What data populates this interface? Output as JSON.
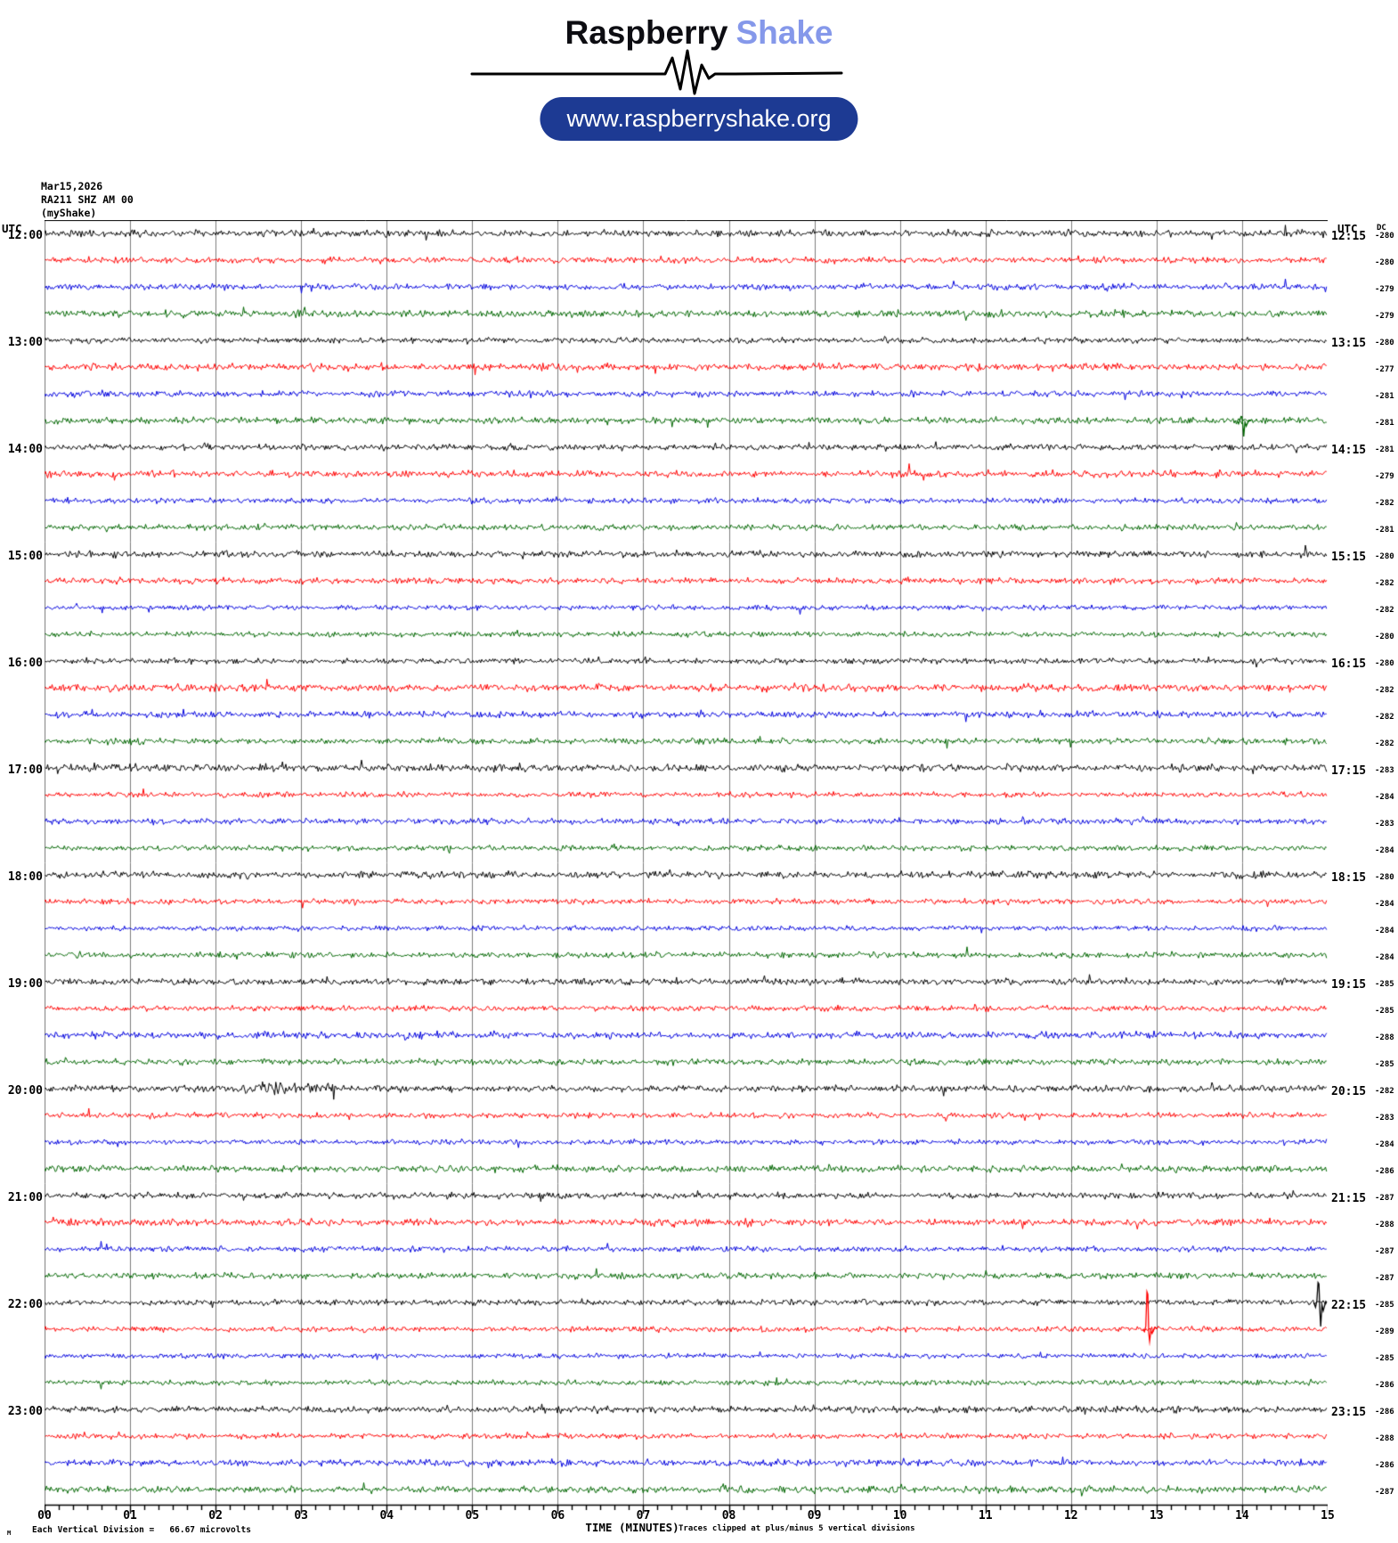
{
  "header": {
    "logo": {
      "primary": "Raspberry",
      "accent": "Shake",
      "primary_color": "#0d0d12",
      "accent_color": "#8598ea"
    },
    "url_pill": {
      "label": "www.raspberryshake.org",
      "bg": "#1d3a93",
      "fg": "#ffffff"
    }
  },
  "station": {
    "date": "Mar15,2026",
    "code": "RA211 SHZ AM 00",
    "network": "(myShake)"
  },
  "plot": {
    "left_axis_header": "UTC",
    "right_axis_header": "UTC",
    "dc_header": "DC",
    "x_axis_title": "TIME (MINUTES)",
    "clip_note": "Traces clipped at plus/minus 5 vertical divisions",
    "scale_note_prefix": "M",
    "scale_note": "Each Vertical Division =   66.67 microvolts",
    "x_tick_labels": [
      "00",
      "01",
      "02",
      "03",
      "04",
      "05",
      "06",
      "07",
      "08",
      "09",
      "10",
      "11",
      "12",
      "13",
      "14",
      "15"
    ],
    "grid_color": "#7d7d7d",
    "axis_color": "#000000",
    "trace_colors": [
      "#000000",
      "#ff0000",
      "#0000dd",
      "#006600"
    ]
  },
  "chart_data": {
    "type": "line",
    "subtype": "helicorder-seismogram",
    "title": "RA211 SHZ AM 00 (myShake) Mar15,2026",
    "xlabel": "TIME (MINUTES)",
    "x_range_minutes": [
      0,
      15
    ],
    "minutes_per_row": 15,
    "minor_ticks_per_minute": 6,
    "row_color_cycle": [
      "black",
      "red",
      "blue",
      "green"
    ],
    "noise_amplitude_divisions": 0.1,
    "rows": [
      {
        "start": "12:00",
        "left_label": "12:00",
        "right_label": "12:15",
        "color": "#000000",
        "dc": -280
      },
      {
        "start": "12:15",
        "color": "#ff0000",
        "dc": -280
      },
      {
        "start": "12:30",
        "color": "#0000dd",
        "dc": -279
      },
      {
        "start": "12:45",
        "color": "#006600",
        "dc": -279
      },
      {
        "start": "13:00",
        "left_label": "13:00",
        "right_label": "13:15",
        "color": "#000000",
        "dc": -280
      },
      {
        "start": "13:15",
        "color": "#ff0000",
        "dc": -277
      },
      {
        "start": "13:30",
        "color": "#0000dd",
        "dc": -281
      },
      {
        "start": "13:45",
        "color": "#006600",
        "dc": -281
      },
      {
        "start": "14:00",
        "left_label": "14:00",
        "right_label": "14:15",
        "color": "#000000",
        "dc": -281
      },
      {
        "start": "14:15",
        "color": "#ff0000",
        "dc": -279
      },
      {
        "start": "14:30",
        "color": "#0000dd",
        "dc": -282
      },
      {
        "start": "14:45",
        "color": "#006600",
        "dc": -281
      },
      {
        "start": "15:00",
        "left_label": "15:00",
        "right_label": "15:15",
        "color": "#000000",
        "dc": -280
      },
      {
        "start": "15:15",
        "color": "#ff0000",
        "dc": -282
      },
      {
        "start": "15:30",
        "color": "#0000dd",
        "dc": -282
      },
      {
        "start": "15:45",
        "color": "#006600",
        "dc": -280
      },
      {
        "start": "16:00",
        "left_label": "16:00",
        "right_label": "16:15",
        "color": "#000000",
        "dc": -280
      },
      {
        "start": "16:15",
        "color": "#ff0000",
        "dc": -282
      },
      {
        "start": "16:30",
        "color": "#0000dd",
        "dc": -282
      },
      {
        "start": "16:45",
        "color": "#006600",
        "dc": -282
      },
      {
        "start": "17:00",
        "left_label": "17:00",
        "right_label": "17:15",
        "color": "#000000",
        "dc": -283
      },
      {
        "start": "17:15",
        "color": "#ff0000",
        "dc": -284
      },
      {
        "start": "17:30",
        "color": "#0000dd",
        "dc": -283
      },
      {
        "start": "17:45",
        "color": "#006600",
        "dc": -284
      },
      {
        "start": "18:00",
        "left_label": "18:00",
        "right_label": "18:15",
        "color": "#000000",
        "dc": -280
      },
      {
        "start": "18:15",
        "color": "#ff0000",
        "dc": -284
      },
      {
        "start": "18:30",
        "color": "#0000dd",
        "dc": -284
      },
      {
        "start": "18:45",
        "color": "#006600",
        "dc": -284
      },
      {
        "start": "19:00",
        "left_label": "19:00",
        "right_label": "19:15",
        "color": "#000000",
        "dc": -285
      },
      {
        "start": "19:15",
        "color": "#ff0000",
        "dc": -285
      },
      {
        "start": "19:30",
        "color": "#0000dd",
        "dc": -288
      },
      {
        "start": "19:45",
        "color": "#006600",
        "dc": -285
      },
      {
        "start": "20:00",
        "left_label": "20:00",
        "right_label": "20:15",
        "color": "#000000",
        "dc": -282
      },
      {
        "start": "20:15",
        "color": "#ff0000",
        "dc": -283
      },
      {
        "start": "20:30",
        "color": "#0000dd",
        "dc": -284
      },
      {
        "start": "20:45",
        "color": "#006600",
        "dc": -286
      },
      {
        "start": "21:00",
        "left_label": "21:00",
        "right_label": "21:15",
        "color": "#000000",
        "dc": -287
      },
      {
        "start": "21:15",
        "color": "#ff0000",
        "dc": -288
      },
      {
        "start": "21:30",
        "color": "#0000dd",
        "dc": -287
      },
      {
        "start": "21:45",
        "color": "#006600",
        "dc": -287
      },
      {
        "start": "22:00",
        "left_label": "22:00",
        "right_label": "22:15",
        "color": "#000000",
        "dc": -285
      },
      {
        "start": "22:15",
        "color": "#ff0000",
        "dc": -289
      },
      {
        "start": "22:30",
        "color": "#0000dd",
        "dc": -285
      },
      {
        "start": "22:45",
        "color": "#006600",
        "dc": -286
      },
      {
        "start": "23:00",
        "left_label": "23:00",
        "right_label": "23:15",
        "color": "#000000",
        "dc": -286
      },
      {
        "start": "23:15",
        "color": "#ff0000",
        "dc": -288
      },
      {
        "start": "23:30",
        "color": "#0000dd",
        "dc": -286
      },
      {
        "start": "23:45",
        "color": "#006600",
        "dc": -287
      }
    ],
    "events": [
      {
        "row_index": 7,
        "trace_start": "13:45",
        "color": "green",
        "type": "spike",
        "t_minutes": 14.0,
        "up_divisions": 0.15,
        "down_divisions": 0.6
      },
      {
        "row_index": 32,
        "trace_start": "20:00",
        "color": "black",
        "type": "burst",
        "t_start_minutes": 2.25,
        "t_end_minutes": 3.4,
        "gain": 2.3
      },
      {
        "row_index": 40,
        "trace_start": "22:00",
        "color": "black",
        "type": "spike",
        "t_minutes": 14.9,
        "up_divisions": 0.75,
        "down_divisions": 0.9
      },
      {
        "row_index": 41,
        "trace_start": "22:15",
        "color": "red",
        "type": "spike",
        "t_minutes": 12.9,
        "up_divisions": 1.4,
        "down_divisions": 0.45
      }
    ]
  }
}
